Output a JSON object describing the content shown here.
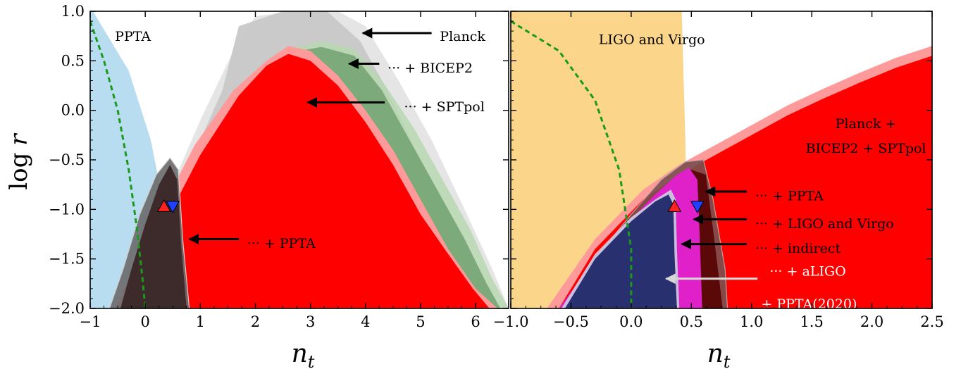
{
  "chart_data": [
    {
      "type": "area",
      "panel": "left",
      "xlabel_main": "n",
      "xlabel_sub": "t",
      "ylabel_main": "log",
      "ylabel_var": "r",
      "xlim": [
        -1,
        6.6
      ],
      "ylim": [
        -2.0,
        1.0
      ],
      "xticks": [
        -1,
        0,
        1,
        2,
        3,
        4,
        5,
        6
      ],
      "yticks": [
        -2.0,
        -1.5,
        -1.0,
        -0.5,
        0.0,
        0.5,
        1.0
      ],
      "ytick_labels": [
        "−2.0",
        "−1.5",
        "−1.0",
        "−0.5",
        "0.0",
        "0.5",
        "1.0"
      ],
      "xtick_labels": [
        "−1",
        "0",
        "1",
        "2",
        "3",
        "4",
        "5",
        "6"
      ],
      "region_label": "PPTA",
      "annotations": [
        {
          "text": "Planck",
          "tip": [
            3.95,
            0.78
          ],
          "tail": [
            5.2,
            0.78
          ],
          "label_at": [
            5.35,
            0.75
          ],
          "color": "#000000"
        },
        {
          "text": "··· + BICEP2",
          "tip": [
            3.7,
            0.47
          ],
          "tail": [
            4.25,
            0.47
          ],
          "label_at": [
            4.4,
            0.43
          ],
          "color": "#000000"
        },
        {
          "text": "··· + SPTpol",
          "tip": [
            2.95,
            0.08
          ],
          "tail": [
            4.35,
            0.08
          ],
          "label_at": [
            4.7,
            0.04
          ],
          "color": "#000000"
        },
        {
          "text": "··· + PPTA",
          "tip": [
            0.8,
            -1.3
          ],
          "tail": [
            1.7,
            -1.3
          ],
          "label_at": [
            1.85,
            -1.34
          ],
          "color": "#000000"
        }
      ],
      "regions": {
        "ppta_bound": {
          "x": [
            -0.95,
            -0.3,
            0.1,
            0.35,
            0.48
          ],
          "y": [
            1.0,
            0.4,
            -0.3,
            -1.0,
            -2.0
          ]
        },
        "planck_outer": {
          "x": [
            -0.3,
            0.3,
            1.0,
            1.6,
            2.0,
            2.7,
            3.5,
            4.0,
            4.6,
            5.2,
            5.8,
            6.3,
            6.6
          ],
          "y": [
            -2.0,
            -1.0,
            -0.1,
            0.6,
            0.95,
            1.0,
            1.0,
            0.85,
            0.3,
            -0.3,
            -1.0,
            -1.6,
            -2.0
          ]
        },
        "planck_inner": {
          "x": [
            -0.3,
            0.4,
            1.0,
            1.4,
            1.7,
            2.5,
            3.3,
            3.9,
            4.4,
            5.0,
            5.6,
            6.1,
            6.4
          ],
          "y": [
            -2.0,
            -1.0,
            -0.3,
            0.2,
            0.85,
            1.0,
            1.0,
            0.7,
            0.2,
            -0.5,
            -1.1,
            -1.7,
            -2.0
          ]
        },
        "bicep2_outer": {
          "x": [
            -0.4,
            0.3,
            1.0,
            1.8,
            2.6,
            3.2,
            3.8,
            4.3,
            4.9,
            5.4,
            5.9,
            6.3,
            6.6
          ],
          "y": [
            -2.0,
            -1.1,
            -0.3,
            0.3,
            0.62,
            0.7,
            0.62,
            0.3,
            -0.2,
            -0.7,
            -1.2,
            -1.7,
            -2.0
          ]
        },
        "bicep2_inner": {
          "x": [
            -0.3,
            0.4,
            1.1,
            1.9,
            2.6,
            3.2,
            3.8,
            4.3,
            4.8,
            5.3,
            5.8,
            6.2,
            6.45
          ],
          "y": [
            -2.0,
            -1.1,
            -0.35,
            0.25,
            0.58,
            0.64,
            0.55,
            0.2,
            -0.3,
            -0.8,
            -1.3,
            -1.75,
            -2.0
          ]
        },
        "spt_outer": {
          "x": [
            -0.55,
            0.2,
            0.9,
            1.6,
            2.2,
            2.6,
            3.0,
            3.5,
            4.0,
            4.5,
            5.0,
            5.5,
            6.0,
            6.4
          ],
          "y": [
            -2.0,
            -1.1,
            -0.35,
            0.2,
            0.5,
            0.65,
            0.6,
            0.35,
            0.0,
            -0.4,
            -0.9,
            -1.4,
            -1.8,
            -2.0
          ]
        },
        "spt_inner": {
          "x": [
            -0.45,
            0.3,
            1.0,
            1.7,
            2.2,
            2.6,
            3.0,
            3.5,
            4.0,
            4.5,
            5.0,
            5.5,
            5.95,
            6.25
          ],
          "y": [
            -2.0,
            -1.2,
            -0.45,
            0.15,
            0.45,
            0.57,
            0.5,
            0.25,
            -0.12,
            -0.55,
            -1.05,
            -1.45,
            -1.8,
            -2.0
          ]
        },
        "ppta_combo_outer": {
          "x": [
            -0.65,
            -0.4,
            -0.1,
            0.2,
            0.45,
            0.6,
            0.68,
            0.8
          ],
          "y": [
            -2.0,
            -1.6,
            -1.05,
            -0.65,
            -0.48,
            -0.6,
            -1.3,
            -2.0
          ]
        },
        "ppta_combo_inner": {
          "x": [
            -0.45,
            -0.25,
            0.0,
            0.25,
            0.45,
            0.58,
            0.65,
            0.75
          ],
          "y": [
            -2.0,
            -1.6,
            -1.15,
            -0.75,
            -0.55,
            -0.7,
            -1.35,
            -2.0
          ]
        },
        "greenline": {
          "x": [
            -1.0,
            -0.75,
            -0.5,
            -0.3,
            -0.15,
            -0.05,
            0.0
          ],
          "y": [
            0.9,
            0.5,
            0.0,
            -0.6,
            -1.2,
            -1.7,
            -2.0
          ]
        }
      },
      "markers": [
        {
          "shape": "triangle-up",
          "x": 0.34,
          "y": -0.97,
          "color": "#ff2222"
        },
        {
          "shape": "triangle-down",
          "x": 0.5,
          "y": -0.97,
          "color": "#1f3fff"
        }
      ]
    },
    {
      "type": "area",
      "panel": "right",
      "xlabel_main": "n",
      "xlabel_sub": "t",
      "xlim": [
        -1.0,
        2.5
      ],
      "ylim": [
        -2.0,
        1.0
      ],
      "xticks": [
        -1.0,
        -0.5,
        0.0,
        0.5,
        1.0,
        1.5,
        2.0,
        2.5
      ],
      "xtick_labels": [
        "−1.0",
        "−0.5",
        "0.0",
        "0.5",
        "1.0",
        "1.5",
        "2.0",
        "2.5"
      ],
      "region_label": "LIGO and Virgo",
      "planck_label_line1": "Planck +",
      "planck_label_line2": "BICEP2 + SPTpol",
      "annotations": [
        {
          "text": "··· + PPTA",
          "tip": [
            0.62,
            -0.82
          ],
          "tail": [
            0.96,
            -0.82
          ],
          "label_at": [
            1.03,
            -0.86
          ],
          "color": "#000000"
        },
        {
          "text": "··· + LIGO and Virgo",
          "tip": [
            0.52,
            -1.1
          ],
          "tail": [
            0.96,
            -1.1
          ],
          "label_at": [
            1.03,
            -1.14
          ],
          "color": "#000000"
        },
        {
          "text": "··· + indirect",
          "tip": [
            0.42,
            -1.35
          ],
          "tail": [
            0.96,
            -1.35
          ],
          "label_at": [
            1.03,
            -1.39
          ],
          "color": "#000000"
        },
        {
          "text": "··· + aLIGO",
          "tip": [
            0.29,
            -1.7
          ],
          "tail": [
            1.05,
            -1.7
          ],
          "label_at": [
            1.15,
            -1.62
          ],
          "color": "#ffffff"
        },
        {
          "text": "+ PPTA(2020)",
          "tip": null,
          "tail": null,
          "label_at": [
            1.08,
            -1.95
          ],
          "color": "#ffffff"
        }
      ],
      "regions": {
        "ligo_bound": {
          "x": [
            -1.0,
            0.42,
            0.45,
            0.47
          ],
          "y": [
            1.0,
            1.0,
            -0.3,
            -2.0
          ]
        },
        "planck_outer": {
          "x": [
            -0.7,
            -0.3,
            0.1,
            0.4,
            0.7,
            1.0,
            1.3,
            1.6,
            1.9,
            2.2,
            2.5
          ],
          "y": [
            -2.0,
            -1.3,
            -0.8,
            -0.55,
            -0.35,
            -0.15,
            0.05,
            0.22,
            0.38,
            0.53,
            0.65
          ]
        },
        "planck_inner": {
          "x": [
            -0.6,
            -0.3,
            0.1,
            0.4,
            0.7,
            1.0,
            1.3,
            1.6,
            1.9,
            2.2,
            2.5
          ],
          "y": [
            -2.0,
            -1.4,
            -0.9,
            -0.65,
            -0.45,
            -0.25,
            -0.05,
            0.12,
            0.28,
            0.43,
            0.55
          ]
        },
        "ppta_combo": {
          "x": [
            -0.55,
            -0.3,
            0.0,
            0.25,
            0.45,
            0.6,
            0.68,
            0.78,
            0.8
          ],
          "y": [
            -2.0,
            -1.5,
            -1.05,
            -0.7,
            -0.52,
            -0.5,
            -0.9,
            -1.6,
            -2.0
          ]
        },
        "ppta_combo_inner": {
          "x": [
            -0.45,
            -0.2,
            0.05,
            0.3,
            0.5,
            0.62,
            0.68,
            0.76
          ],
          "y": [
            -2.0,
            -1.5,
            -1.1,
            -0.75,
            -0.6,
            -0.65,
            -1.2,
            -2.0
          ]
        },
        "ligo_combo": {
          "x": [
            -0.6,
            -0.3,
            0.0,
            0.2,
            0.38,
            0.48,
            0.55,
            0.57,
            0.59
          ],
          "y": [
            -2.0,
            -1.5,
            -1.1,
            -0.85,
            -0.65,
            -0.58,
            -0.7,
            -1.3,
            -2.0
          ]
        },
        "indirect": {
          "x": [
            -0.58,
            -0.3,
            0.0,
            0.2,
            0.33,
            0.37,
            0.38,
            0.4
          ],
          "y": [
            -2.0,
            -1.45,
            -1.08,
            -0.9,
            -0.8,
            -0.9,
            -1.4,
            -2.0
          ]
        },
        "aligo": {
          "x": [
            -0.55,
            -0.3,
            0.0,
            0.2,
            0.31,
            0.35,
            0.36,
            0.38
          ],
          "y": [
            -2.0,
            -1.5,
            -1.12,
            -0.92,
            -0.85,
            -0.95,
            -1.45,
            -2.0
          ]
        },
        "greenline": {
          "x": [
            -1.0,
            -0.6,
            -0.3,
            -0.1,
            0.0,
            0.0
          ],
          "y": [
            0.9,
            0.6,
            0.1,
            -0.6,
            -1.4,
            -2.0
          ]
        }
      },
      "markers": [
        {
          "shape": "triangle-up",
          "x": 0.36,
          "y": -0.97,
          "color": "#ff2222"
        },
        {
          "shape": "triangle-down",
          "x": 0.55,
          "y": -0.97,
          "color": "#1f3fff"
        }
      ]
    }
  ],
  "colors": {
    "ppta_blue": "#b8dcf0",
    "ligo_orange": "#fbd68a",
    "planck_gray": "#c8c8c8",
    "bicep_green": "#78a878",
    "spt_red": "#ff0000",
    "spt_pink": "#ff9a9a",
    "ppta_combo": "#3d2a2a",
    "ligo_magenta": "#e020c8",
    "indirect_navy": "#283070",
    "greenline": "#1a9a1a"
  }
}
